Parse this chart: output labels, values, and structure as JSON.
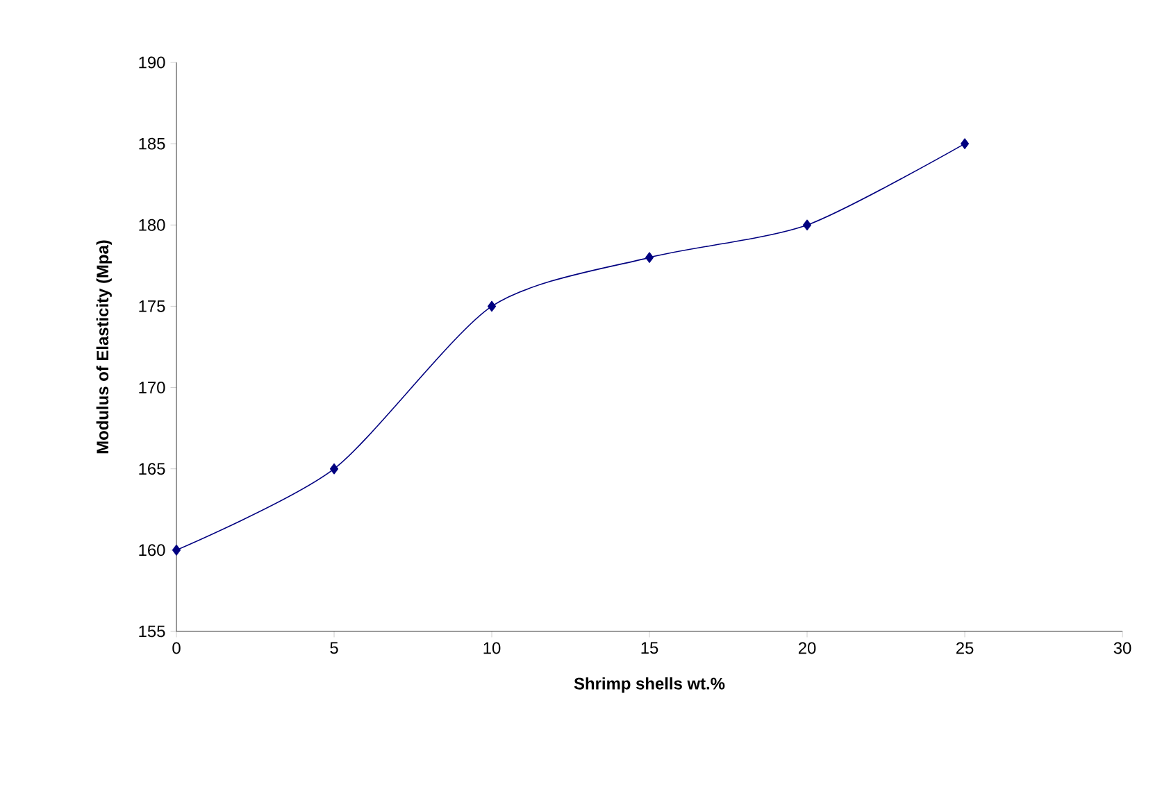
{
  "chart_data": {
    "type": "line",
    "xlabel": "Shrimp shells wt.%",
    "ylabel": "Modulus of Elasticity (Mpa)",
    "x": [
      0,
      5,
      10,
      15,
      20,
      25
    ],
    "series": [
      {
        "color": "#000080",
        "values": [
          160,
          165,
          175,
          178,
          180,
          185
        ]
      }
    ],
    "xlim": [
      0,
      30
    ],
    "xticks": [
      0,
      5,
      10,
      15,
      20,
      25,
      30
    ],
    "ylim": [
      155,
      190
    ],
    "yticks": [
      155,
      160,
      165,
      170,
      175,
      180,
      185,
      190
    ],
    "marker": "diamond",
    "line_style": "solid"
  }
}
